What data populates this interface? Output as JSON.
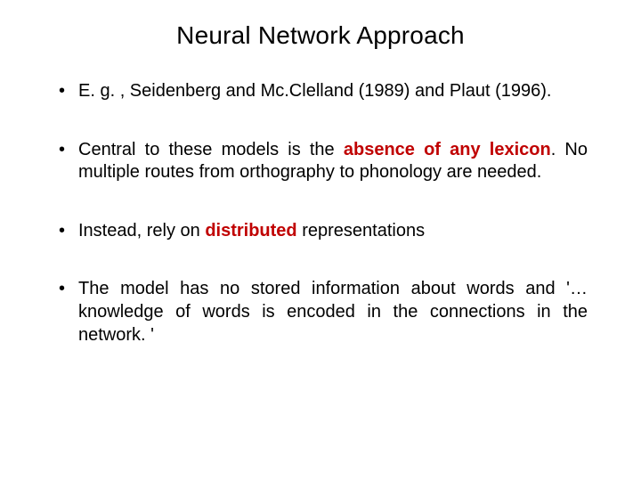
{
  "title": "Neural Network Approach",
  "colors": {
    "emphasis": "#c00000",
    "text": "#000000",
    "background": "#ffffff"
  },
  "bullets": [
    {
      "pre": "E. g. , Seidenberg and Mc.Clelland (1989) and Plaut (1996).",
      "em": "",
      "post": ""
    },
    {
      "pre": "Central to these models is the ",
      "em": "absence of any lexicon",
      "post": ". No multiple routes from orthography to phonology are needed."
    },
    {
      "pre": "Instead, rely on ",
      "em": "distributed",
      "post": " representations"
    },
    {
      "pre": "The model has no stored information about words and '… knowledge of words is encoded in the connections in the network. '",
      "em": "",
      "post": ""
    }
  ]
}
